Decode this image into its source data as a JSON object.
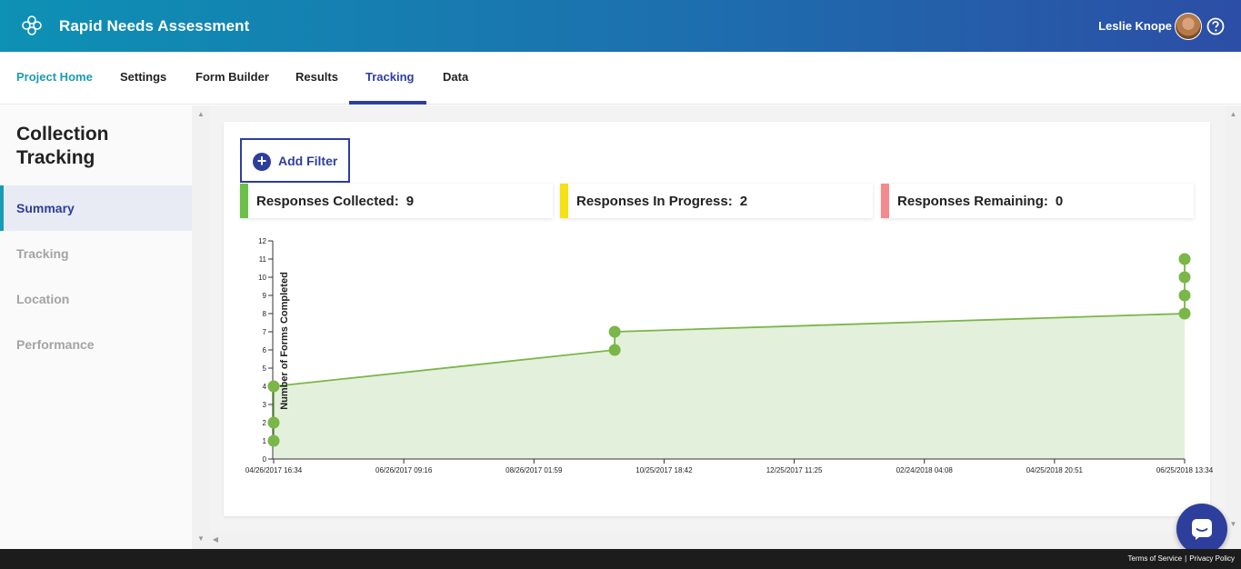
{
  "app": {
    "title": "Rapid Needs Assessment",
    "user_name": "Leslie Knope",
    "logo_icon": "flower-logo-icon",
    "help_icon": "question-circle-icon"
  },
  "nav": {
    "tabs": [
      {
        "label": "Project Home"
      },
      {
        "label": "Settings"
      },
      {
        "label": "Form Builder"
      },
      {
        "label": "Results"
      },
      {
        "label": "Tracking"
      },
      {
        "label": "Data"
      }
    ],
    "active": "Tracking"
  },
  "sidebar": {
    "title_line1": "Collection",
    "title_line2": "Tracking",
    "items": [
      {
        "label": "Summary"
      },
      {
        "label": "Tracking"
      },
      {
        "label": "Location"
      },
      {
        "label": "Performance"
      }
    ],
    "active": "Summary"
  },
  "toolbar": {
    "add_filter_label": "Add Filter"
  },
  "stats": [
    {
      "label": "Responses Collected:",
      "value": "9",
      "color": "#6cc04a"
    },
    {
      "label": "Responses In Progress:",
      "value": "2",
      "color": "#f5e116"
    },
    {
      "label": "Responses Remaining:",
      "value": "0",
      "color": "#f58a8e"
    }
  ],
  "chart_data": {
    "type": "area",
    "ylabel": "Number of Forms Completed",
    "xlabel": "",
    "ylim": [
      0,
      12
    ],
    "yticks": [
      0,
      1,
      2,
      3,
      4,
      5,
      6,
      7,
      8,
      9,
      10,
      11,
      12
    ],
    "xticks": [
      "04/26/2017 16:34",
      "06/26/2017 09:16",
      "08/26/2017 01:59",
      "10/25/2017 18:42",
      "12/25/2017 11:25",
      "02/24/2018 04:08",
      "04/25/2018 20:51",
      "06/25/2018 13:34"
    ],
    "points": [
      {
        "x": "04/26/2017 16:34",
        "y": 1
      },
      {
        "x": "04/26/2017 16:34",
        "y": 2
      },
      {
        "x": "04/26/2017 16:34",
        "y": 4
      },
      {
        "x": "10/02/2017 18:00",
        "y": 6
      },
      {
        "x": "10/02/2017 18:00",
        "y": 7
      },
      {
        "x": "06/25/2018 13:34",
        "y": 8
      },
      {
        "x": "06/25/2018 13:34",
        "y": 9
      },
      {
        "x": "06/25/2018 13:34",
        "y": 10
      },
      {
        "x": "06/25/2018 13:34",
        "y": 11
      }
    ],
    "line_color": "#7ab648",
    "fill_color": "#e3f0dc",
    "grid": false
  },
  "footer": {
    "terms": "Terms of Service",
    "separator": "|",
    "privacy": "Privacy Policy"
  }
}
